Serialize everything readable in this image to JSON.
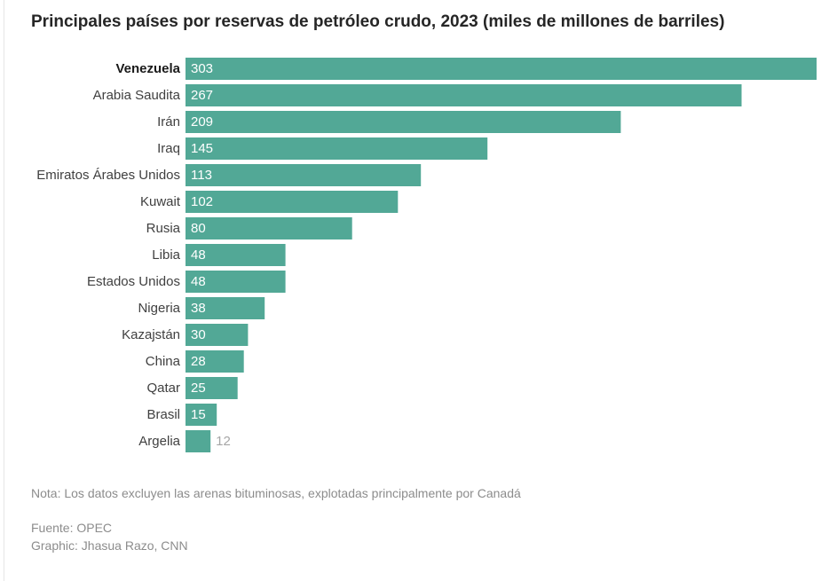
{
  "chart_data": {
    "type": "bar",
    "orientation": "horizontal",
    "title": "Principales países por reservas de petróleo crudo, 2023 (miles de millones de barriles)",
    "categories": [
      "Venezuela",
      "Arabia Saudita",
      "Irán",
      "Iraq",
      "Emiratos Árabes Unidos",
      "Kuwait",
      "Rusia",
      "Libia",
      "Estados Unidos",
      "Nigeria",
      "Kazajstán",
      "China",
      "Qatar",
      "Brasil",
      "Argelia"
    ],
    "values": [
      303,
      267,
      209,
      145,
      113,
      102,
      80,
      48,
      48,
      38,
      30,
      28,
      25,
      15,
      12
    ],
    "highlighted_category": "Venezuela",
    "xlim": [
      0,
      303
    ],
    "grid": false,
    "legend": false,
    "bar_color": "#52a896",
    "label_inside_color": "#ffffff",
    "label_outside_color": "#a6a6a6"
  },
  "footer": {
    "note": "Nota: Los datos excluyen las arenas bituminosas, explotadas principalmente por Canadá",
    "source": "Fuente: OPEC",
    "credit": "Graphic: Jhasua Razo, CNN"
  }
}
